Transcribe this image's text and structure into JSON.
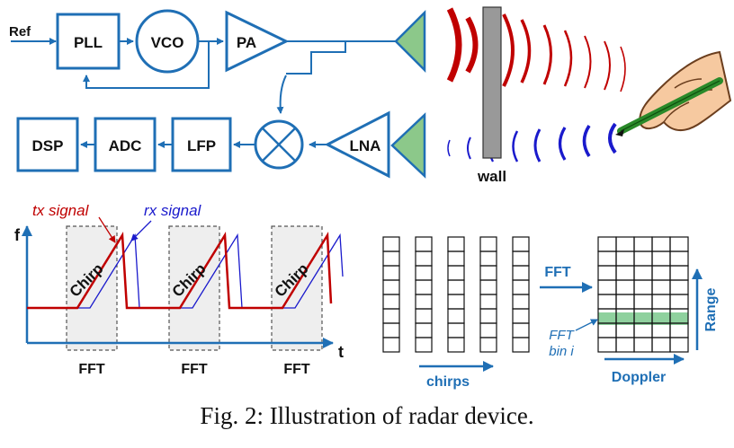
{
  "blocks": {
    "ref": "Ref",
    "pll": "PLL",
    "vco": "VCO",
    "pa": "PA",
    "lna": "LNA",
    "lfp": "LFP",
    "adc": "ADC",
    "dsp": "DSP",
    "wall": "wall"
  },
  "signal_plot": {
    "y_axis": "f",
    "x_axis": "t",
    "tx_label": "tx signal",
    "rx_label": "rx signal",
    "chirp_label": "Chirp",
    "fft_label": "FFT"
  },
  "grid_plot": {
    "chirps_label": "chirps",
    "fft_arrow_label": "FFT",
    "range_label": "Range",
    "doppler_label": "Doppler",
    "bin_label_line1": "FFT",
    "bin_label_line2": "bin i"
  },
  "caption": "Fig. 2: Illustration of radar device.",
  "colors": {
    "block_blue": "#1f6fb5",
    "tx_red": "#c00000",
    "rx_blue": "#1a1acc",
    "antenna_green": "#8cc88a",
    "bin_green": "#8fd19e",
    "wall_gray": "#999999"
  }
}
